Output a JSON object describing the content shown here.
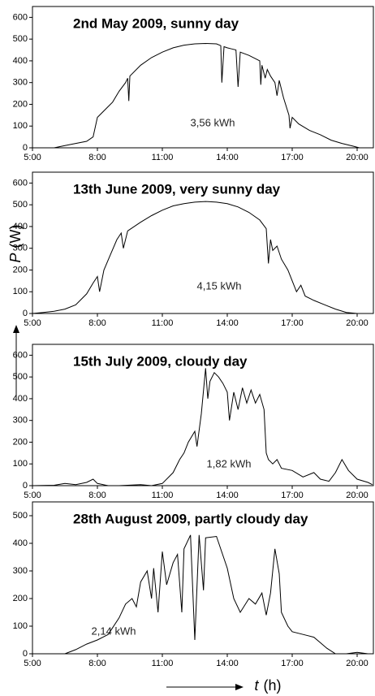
{
  "chart_data": [
    {
      "type": "line",
      "title": "2nd May 2009,  sunny day",
      "annotation": "3,56 kWh",
      "color": "#000000",
      "x": [
        6.0,
        6.5,
        7.0,
        7.5,
        7.8,
        8.0,
        8.3,
        8.7,
        9.0,
        9.3,
        9.4,
        9.45,
        9.5,
        10,
        10.5,
        11,
        11.5,
        12,
        12.5,
        13,
        13.5,
        13.7,
        13.75,
        13.85,
        14.0,
        14.2,
        14.4,
        14.5,
        14.6,
        15.0,
        15.5,
        15.55,
        15.6,
        15.75,
        15.85,
        16.0,
        16.2,
        16.3,
        16.4,
        16.6,
        16.85,
        16.9,
        17.0,
        17.3,
        17.8,
        18.3,
        18.8,
        19.3,
        19.8,
        20.1
      ],
      "values": [
        0,
        10,
        20,
        30,
        50,
        140,
        170,
        210,
        260,
        300,
        320,
        215,
        330,
        380,
        415,
        440,
        460,
        472,
        478,
        480,
        478,
        470,
        300,
        465,
        460,
        455,
        450,
        280,
        440,
        425,
        400,
        290,
        380,
        320,
        360,
        330,
        300,
        240,
        310,
        230,
        150,
        90,
        140,
        110,
        80,
        60,
        35,
        20,
        8,
        0
      ],
      "xlim": [
        5,
        20.75
      ],
      "xticks": [
        {
          "value": 5,
          "label": "5:00"
        },
        {
          "value": 8,
          "label": "8:00"
        },
        {
          "value": 11,
          "label": "11:00"
        },
        {
          "value": 14,
          "label": "14:00"
        },
        {
          "value": 17,
          "label": "17:00"
        },
        {
          "value": 20,
          "label": "20:00"
        }
      ],
      "ylim": [
        0,
        650
      ],
      "yticks": [
        0,
        100,
        200,
        300,
        400,
        500,
        600
      ]
    },
    {
      "type": "line",
      "title": "13th June 2009,  very sunny day",
      "annotation": "4,15 kWh",
      "color": "#000000",
      "x": [
        5.0,
        5.5,
        6,
        6.5,
        7,
        7.5,
        7.8,
        8.0,
        8.1,
        8.3,
        8.6,
        8.9,
        9.1,
        9.2,
        9.4,
        10,
        10.5,
        11,
        11.5,
        12,
        12.5,
        13,
        13.5,
        14,
        14.5,
        15,
        15.5,
        15.8,
        15.9,
        16.0,
        16.1,
        16.3,
        16.5,
        16.8,
        17.0,
        17.2,
        17.4,
        17.6,
        18,
        18.5,
        19,
        19.5,
        20.0,
        20.5
      ],
      "values": [
        0,
        5,
        10,
        20,
        40,
        90,
        140,
        170,
        100,
        200,
        270,
        340,
        370,
        300,
        380,
        420,
        450,
        475,
        495,
        505,
        512,
        515,
        512,
        505,
        490,
        465,
        430,
        390,
        230,
        340,
        290,
        310,
        250,
        200,
        150,
        100,
        130,
        80,
        60,
        40,
        20,
        5,
        0,
        0
      ],
      "xlim": [
        5,
        20.75
      ],
      "xticks": [
        {
          "value": 5,
          "label": "5:00"
        },
        {
          "value": 8,
          "label": "8:00"
        },
        {
          "value": 11,
          "label": "11:00"
        },
        {
          "value": 14,
          "label": "14:00"
        },
        {
          "value": 17,
          "label": "17:00"
        },
        {
          "value": 20,
          "label": "20:00"
        }
      ],
      "ylim": [
        0,
        650
      ],
      "yticks": [
        0,
        100,
        200,
        300,
        400,
        500,
        600
      ]
    },
    {
      "type": "line",
      "title": "15th July 2009,  cloudy day",
      "annotation": "1,82 kWh",
      "color": "#000000",
      "x": [
        5,
        6,
        6.5,
        7,
        7.5,
        7.8,
        8,
        8.5,
        9,
        10,
        10.5,
        11,
        11.5,
        11.8,
        12,
        12.2,
        12.5,
        12.6,
        12.8,
        13,
        13.1,
        13.2,
        13.4,
        13.6,
        13.8,
        14,
        14.1,
        14.3,
        14.5,
        14.7,
        14.9,
        15.1,
        15.3,
        15.5,
        15.7,
        15.8,
        15.9,
        16.1,
        16.3,
        16.5,
        17,
        17.5,
        18,
        18.3,
        18.7,
        19,
        19.3,
        19.6,
        20,
        20.5,
        20.7
      ],
      "values": [
        0,
        2,
        10,
        5,
        15,
        30,
        10,
        0,
        0,
        5,
        0,
        10,
        60,
        120,
        150,
        200,
        250,
        180,
        330,
        540,
        400,
        480,
        520,
        500,
        470,
        430,
        300,
        430,
        350,
        450,
        380,
        440,
        380,
        420,
        350,
        150,
        120,
        100,
        120,
        80,
        70,
        40,
        60,
        30,
        20,
        60,
        120,
        70,
        30,
        15,
        5
      ],
      "xlim": [
        5,
        20.75
      ],
      "xticks": [
        {
          "value": 5,
          "label": "5:00"
        },
        {
          "value": 8,
          "label": "8:00"
        },
        {
          "value": 11,
          "label": "11:00"
        },
        {
          "value": 14,
          "label": "14:00"
        },
        {
          "value": 17,
          "label": "17:00"
        },
        {
          "value": 20,
          "label": "20:00"
        }
      ],
      "ylim": [
        0,
        650
      ],
      "yticks": [
        0,
        100,
        200,
        300,
        400,
        500,
        600
      ]
    },
    {
      "type": "line",
      "title": "28th August 2009,  partly cloudy day",
      "annotation": "2,14 kWh",
      "color": "#000000",
      "x": [
        6.5,
        7,
        7.5,
        8,
        8.5,
        9,
        9.3,
        9.6,
        9.8,
        10,
        10.3,
        10.5,
        10.6,
        10.8,
        11,
        11.2,
        11.5,
        11.7,
        11.9,
        12.0,
        12.3,
        12.5,
        12.7,
        12.9,
        13.0,
        13.5,
        14.0,
        14.3,
        14.6,
        15,
        15.3,
        15.6,
        15.8,
        16.0,
        16.2,
        16.4,
        16.5,
        16.8,
        17,
        17.5,
        18,
        18.3,
        18.6,
        19,
        19.5,
        20,
        20.5
      ],
      "values": [
        0,
        15,
        35,
        50,
        70,
        130,
        180,
        200,
        170,
        260,
        300,
        200,
        310,
        150,
        370,
        250,
        330,
        360,
        150,
        380,
        430,
        50,
        430,
        230,
        420,
        425,
        310,
        200,
        150,
        200,
        180,
        220,
        140,
        220,
        380,
        290,
        150,
        100,
        80,
        70,
        60,
        40,
        20,
        0,
        0,
        5,
        0
      ],
      "xlim": [
        5,
        20.75
      ],
      "xticks": [
        {
          "value": 5,
          "label": "5:00"
        },
        {
          "value": 8,
          "label": "8:00"
        },
        {
          "value": 11,
          "label": "11:00"
        },
        {
          "value": 14,
          "label": "14:00"
        },
        {
          "value": 17,
          "label": "17:00"
        },
        {
          "value": 20,
          "label": "20:00"
        }
      ],
      "ylim": [
        0,
        550
      ],
      "yticks": [
        0,
        100,
        200,
        300,
        400,
        500
      ]
    }
  ],
  "ylabel": "P",
  "ylabel_unit": "(W)",
  "xlabel": "t",
  "xlabel_unit": "(h)"
}
